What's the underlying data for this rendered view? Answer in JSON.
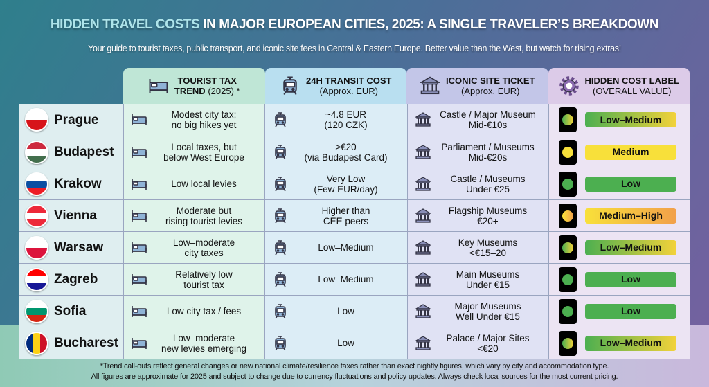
{
  "title": {
    "highlight": "HIDDEN TRAVEL COSTS",
    "rest": " IN MAJOR EUROPEAN CITIES, 2025: A SINGLE TRAVELER’S BREAKDOWN"
  },
  "subtitle": "Your guide to tourist taxes, public transport, and iconic site fees in Central & Eastern Europe. Better value than the West, but watch for rising extras!",
  "headers": [
    {
      "bold": "TOURIST TAX",
      "line2_bold": "TREND",
      "line2": " (2025) *",
      "icon": "bed-icon"
    },
    {
      "bold": "24H TRANSIT COST",
      "line2": "(Approx. EUR)",
      "icon": "tram-icon"
    },
    {
      "bold": "ICONIC SITE TICKET",
      "line2": "(Approx. EUR)",
      "icon": "museum-icon"
    },
    {
      "bold": "HIDDEN COST LABEL",
      "line2": "(OVERALL VALUE)",
      "icon": "gear-icon"
    }
  ],
  "colors": {
    "low": "#4caf50",
    "medium": "#f8e03a",
    "high": "#f2a04a"
  },
  "rows": [
    {
      "city": "Prague",
      "flag": "cz",
      "tax": [
        "Modest city tax;",
        "no big hikes yet"
      ],
      "transit": [
        "~4.8 EUR",
        "(120 CZK)"
      ],
      "site": [
        "Castle / Major Museum",
        "Mid-€10s"
      ],
      "label": "Low–Medium",
      "level": "low-medium"
    },
    {
      "city": "Budapest",
      "flag": "hu",
      "tax": [
        "Local taxes, but",
        "below West Europe"
      ],
      "transit": [
        ">€20",
        "(via Budapest Card)"
      ],
      "site": [
        "Parliament / Museums",
        "Mid-€20s"
      ],
      "label": "Medium",
      "level": "medium"
    },
    {
      "city": "Krakow",
      "flag": "sk",
      "tax": [
        "Low local levies"
      ],
      "transit": [
        "Very Low",
        "(Few EUR/day)"
      ],
      "site": [
        "Castle / Museums",
        "Under €25"
      ],
      "label": "Low",
      "level": "low"
    },
    {
      "city": "Vienna",
      "flag": "at",
      "tax": [
        "Moderate but",
        "rising tourist levies"
      ],
      "transit": [
        "Higher than",
        "CEE peers"
      ],
      "site": [
        "Flagship Museums",
        "€20+"
      ],
      "label": "Medium–High",
      "level": "medium-high"
    },
    {
      "city": "Warsaw",
      "flag": "pl",
      "tax": [
        "Low–moderate",
        "city taxes"
      ],
      "transit": [
        "Low–Medium"
      ],
      "site": [
        "Key Museums",
        "<€15–20"
      ],
      "label": "Low–Medium",
      "level": "low-medium"
    },
    {
      "city": "Zagreb",
      "flag": "hr",
      "tax": [
        "Relatively low",
        "tourist tax"
      ],
      "transit": [
        "Low–Medium"
      ],
      "site": [
        "Main Museums",
        "Under €15"
      ],
      "label": "Low",
      "level": "low"
    },
    {
      "city": "Sofia",
      "flag": "bg",
      "tax": [
        "Low city tax / fees"
      ],
      "transit": [
        "Low"
      ],
      "site": [
        "Major Museums",
        "Well Under €15"
      ],
      "label": "Low",
      "level": "low"
    },
    {
      "city": "Bucharest",
      "flag": "ro",
      "tax": [
        "Low–moderate",
        "new levies emerging"
      ],
      "transit": [
        "Low"
      ],
      "site": [
        "Palace / Major Sites",
        "<€20"
      ],
      "label": "Low–Medium",
      "level": "low-medium"
    }
  ],
  "footnote": [
    "*Trend call-outs reflect general changes or new national climate/resilience taxes rather than exact nightly figures, which vary by city and accommodation type.",
    "All figures are approximate for 2025 and subject to change due to currency fluctuations and policy updates. Always check local sources for the most current pricing."
  ]
}
